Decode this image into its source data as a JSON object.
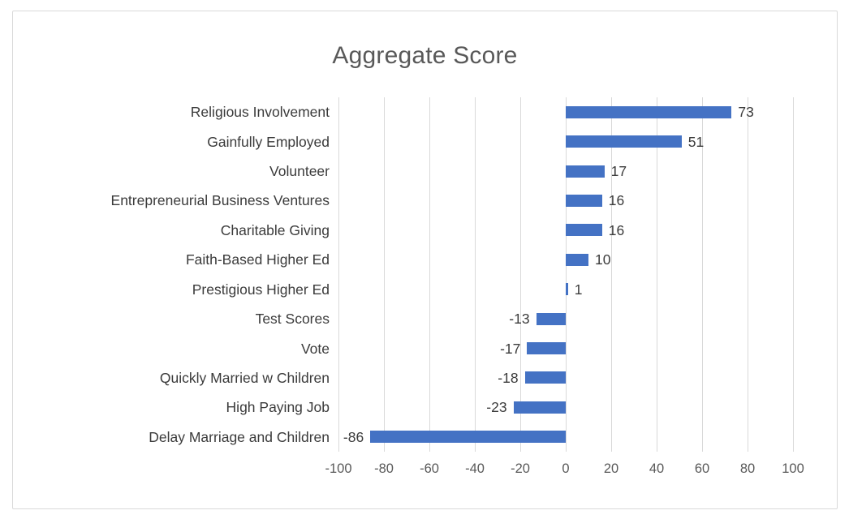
{
  "chart_data": {
    "type": "bar",
    "orientation": "horizontal",
    "title": "Aggregate Score",
    "categories": [
      "Religious Involvement",
      "Gainfully Employed",
      "Volunteer",
      "Entrepreneurial Business Ventures",
      "Charitable Giving",
      "Faith-Based Higher Ed",
      "Prestigious Higher Ed",
      "Test Scores",
      "Vote",
      "Quickly Married w Children",
      "High Paying Job",
      "Delay Marriage and Children"
    ],
    "values": [
      73,
      51,
      17,
      16,
      16,
      10,
      1,
      -13,
      -17,
      -18,
      -23,
      -86
    ],
    "data_labels": [
      "73",
      "51",
      "17",
      "16",
      "16",
      "10",
      "1",
      "-13",
      "-17",
      "-18",
      "-23",
      "-86"
    ],
    "xlabel": "",
    "ylabel": "",
    "xlim": [
      -100,
      100
    ],
    "x_ticks": [
      -100,
      -80,
      -60,
      -40,
      -20,
      0,
      20,
      40,
      60,
      80,
      100
    ],
    "x_tick_labels": [
      "-100",
      "-80",
      "-60",
      "-40",
      "-20",
      "0",
      "20",
      "40",
      "60",
      "80",
      "100"
    ],
    "grid": "vertical-only",
    "legend": "none",
    "bar_color": "#4472C4",
    "gridline_color": "#D9D9D9",
    "title_color": "#595959",
    "category_label_color": "#3B3B3B",
    "value_label_color": "#3B3B3B",
    "tick_label_color": "#595959",
    "frame_border_color": "#D9D9D9",
    "background_color": "#FFFFFF"
  }
}
